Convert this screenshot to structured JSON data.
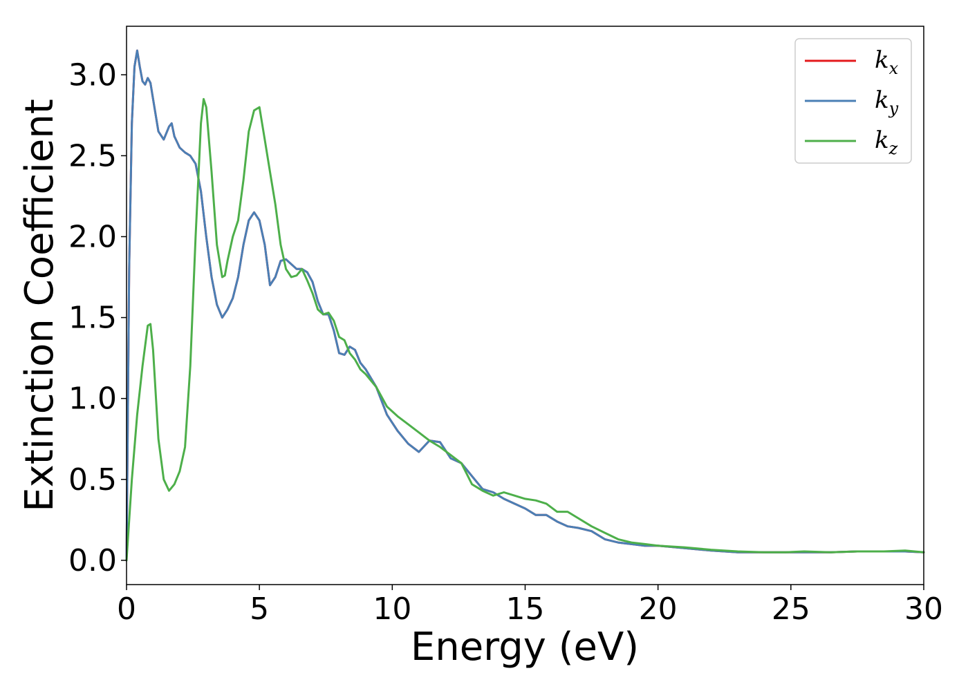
{
  "chart_data": {
    "type": "line",
    "xlabel": "Energy (eV)",
    "ylabel": "Extinction Coefficient",
    "xlim": [
      0,
      30
    ],
    "ylim": [
      -0.15,
      3.3
    ],
    "xticks": [
      0,
      5,
      10,
      15,
      20,
      25,
      30
    ],
    "xtick_labels": [
      "0",
      "5",
      "10",
      "15",
      "20",
      "25",
      "30"
    ],
    "yticks": [
      0.0,
      0.5,
      1.0,
      1.5,
      2.0,
      2.5,
      3.0
    ],
    "ytick_labels": [
      "0.0",
      "0.5",
      "1.0",
      "1.5",
      "2.0",
      "2.5",
      "3.0"
    ],
    "grid": false,
    "legend_position": "top-right",
    "series": [
      {
        "name": "k",
        "subscript": "x",
        "color": "#e41a1c",
        "x": [
          0,
          0.1,
          0.2,
          0.3,
          0.4,
          0.5,
          0.6,
          0.7,
          0.8,
          0.9,
          1.0,
          1.2,
          1.4,
          1.6,
          1.7,
          1.8,
          2.0,
          2.2,
          2.4,
          2.6,
          2.8,
          3.0,
          3.2,
          3.4,
          3.6,
          3.8,
          4.0,
          4.2,
          4.4,
          4.6,
          4.8,
          5.0,
          5.2,
          5.4,
          5.6,
          5.8,
          6.0,
          6.2,
          6.4,
          6.6,
          6.8,
          7.0,
          7.2,
          7.4,
          7.6,
          7.8,
          8.0,
          8.2,
          8.4,
          8.6,
          8.8,
          9.0,
          9.4,
          9.8,
          10.2,
          10.6,
          11.0,
          11.4,
          11.8,
          12.2,
          12.6,
          13.0,
          13.4,
          13.8,
          14.2,
          14.6,
          15.0,
          15.4,
          15.8,
          16.2,
          16.6,
          17.0,
          17.5,
          18.0,
          18.5,
          19.0,
          19.5,
          20.0,
          21.0,
          22.0,
          23.0,
          24.0,
          24.8,
          25.5,
          26.5,
          27.5,
          28.5,
          29.3,
          30.0
        ],
        "values": [
          0.0,
          1.8,
          2.7,
          3.05,
          3.15,
          3.05,
          2.96,
          2.94,
          2.98,
          2.95,
          2.85,
          2.65,
          2.6,
          2.68,
          2.7,
          2.62,
          2.55,
          2.52,
          2.5,
          2.45,
          2.28,
          2.0,
          1.75,
          1.58,
          1.5,
          1.55,
          1.62,
          1.75,
          1.95,
          2.1,
          2.15,
          2.1,
          1.95,
          1.7,
          1.75,
          1.85,
          1.86,
          1.83,
          1.8,
          1.8,
          1.78,
          1.72,
          1.6,
          1.52,
          1.52,
          1.42,
          1.28,
          1.27,
          1.32,
          1.3,
          1.22,
          1.18,
          1.07,
          0.9,
          0.8,
          0.72,
          0.67,
          0.74,
          0.73,
          0.63,
          0.6,
          0.52,
          0.44,
          0.42,
          0.38,
          0.35,
          0.32,
          0.28,
          0.28,
          0.24,
          0.21,
          0.2,
          0.18,
          0.13,
          0.11,
          0.1,
          0.09,
          0.09,
          0.075,
          0.06,
          0.05,
          0.05,
          0.05,
          0.05,
          0.05,
          0.055,
          0.055,
          0.055,
          0.05
        ]
      },
      {
        "name": "k",
        "subscript": "y",
        "color": "#4a7fb5",
        "x": [
          0,
          0.1,
          0.2,
          0.3,
          0.4,
          0.5,
          0.6,
          0.7,
          0.8,
          0.9,
          1.0,
          1.2,
          1.4,
          1.6,
          1.7,
          1.8,
          2.0,
          2.2,
          2.4,
          2.6,
          2.8,
          3.0,
          3.2,
          3.4,
          3.6,
          3.8,
          4.0,
          4.2,
          4.4,
          4.6,
          4.8,
          5.0,
          5.2,
          5.4,
          5.6,
          5.8,
          6.0,
          6.2,
          6.4,
          6.6,
          6.8,
          7.0,
          7.2,
          7.4,
          7.6,
          7.8,
          8.0,
          8.2,
          8.4,
          8.6,
          8.8,
          9.0,
          9.4,
          9.8,
          10.2,
          10.6,
          11.0,
          11.4,
          11.8,
          12.2,
          12.6,
          13.0,
          13.4,
          13.8,
          14.2,
          14.6,
          15.0,
          15.4,
          15.8,
          16.2,
          16.6,
          17.0,
          17.5,
          18.0,
          18.5,
          19.0,
          19.5,
          20.0,
          21.0,
          22.0,
          23.0,
          24.0,
          24.8,
          25.5,
          26.5,
          27.5,
          28.5,
          29.3,
          30.0
        ],
        "values": [
          0.0,
          1.8,
          2.7,
          3.05,
          3.15,
          3.05,
          2.96,
          2.94,
          2.98,
          2.95,
          2.85,
          2.65,
          2.6,
          2.68,
          2.7,
          2.62,
          2.55,
          2.52,
          2.5,
          2.45,
          2.28,
          2.0,
          1.75,
          1.58,
          1.5,
          1.55,
          1.62,
          1.75,
          1.95,
          2.1,
          2.15,
          2.1,
          1.95,
          1.7,
          1.75,
          1.85,
          1.86,
          1.83,
          1.8,
          1.8,
          1.78,
          1.72,
          1.6,
          1.52,
          1.52,
          1.42,
          1.28,
          1.27,
          1.32,
          1.3,
          1.22,
          1.18,
          1.07,
          0.9,
          0.8,
          0.72,
          0.67,
          0.74,
          0.73,
          0.63,
          0.6,
          0.52,
          0.44,
          0.42,
          0.38,
          0.35,
          0.32,
          0.28,
          0.28,
          0.24,
          0.21,
          0.2,
          0.18,
          0.13,
          0.11,
          0.1,
          0.09,
          0.09,
          0.075,
          0.06,
          0.05,
          0.05,
          0.05,
          0.05,
          0.05,
          0.055,
          0.055,
          0.055,
          0.05
        ]
      },
      {
        "name": "k",
        "subscript": "z",
        "color": "#4daf4a",
        "x": [
          0,
          0.2,
          0.4,
          0.6,
          0.8,
          0.9,
          1.0,
          1.2,
          1.4,
          1.6,
          1.8,
          2.0,
          2.2,
          2.4,
          2.6,
          2.8,
          2.9,
          3.0,
          3.2,
          3.4,
          3.6,
          3.7,
          3.8,
          4.0,
          4.2,
          4.4,
          4.6,
          4.8,
          5.0,
          5.2,
          5.4,
          5.6,
          5.8,
          6.0,
          6.2,
          6.4,
          6.6,
          6.8,
          7.0,
          7.2,
          7.4,
          7.6,
          7.8,
          8.0,
          8.2,
          8.4,
          8.6,
          8.8,
          9.0,
          9.4,
          9.8,
          10.2,
          10.6,
          11.0,
          11.4,
          11.8,
          12.2,
          12.6,
          13.0,
          13.4,
          13.8,
          14.2,
          14.6,
          15.0,
          15.4,
          15.8,
          16.2,
          16.6,
          17.0,
          17.5,
          18.0,
          18.5,
          19.0,
          19.5,
          20.0,
          21.0,
          22.0,
          23.0,
          24.0,
          24.8,
          25.5,
          26.5,
          27.5,
          28.5,
          29.3,
          30.0
        ],
        "values": [
          0.0,
          0.5,
          0.9,
          1.2,
          1.45,
          1.46,
          1.3,
          0.75,
          0.5,
          0.43,
          0.47,
          0.55,
          0.7,
          1.2,
          2.0,
          2.7,
          2.85,
          2.8,
          2.4,
          1.95,
          1.75,
          1.76,
          1.85,
          2.0,
          2.1,
          2.35,
          2.65,
          2.78,
          2.8,
          2.6,
          2.4,
          2.2,
          1.95,
          1.8,
          1.75,
          1.76,
          1.8,
          1.73,
          1.65,
          1.55,
          1.52,
          1.53,
          1.48,
          1.38,
          1.36,
          1.28,
          1.24,
          1.18,
          1.15,
          1.07,
          0.95,
          0.89,
          0.84,
          0.79,
          0.74,
          0.7,
          0.65,
          0.6,
          0.47,
          0.43,
          0.4,
          0.42,
          0.4,
          0.38,
          0.37,
          0.35,
          0.3,
          0.3,
          0.26,
          0.21,
          0.17,
          0.13,
          0.11,
          0.1,
          0.09,
          0.08,
          0.065,
          0.055,
          0.05,
          0.05,
          0.055,
          0.05,
          0.055,
          0.055,
          0.06,
          0.05
        ]
      }
    ]
  }
}
